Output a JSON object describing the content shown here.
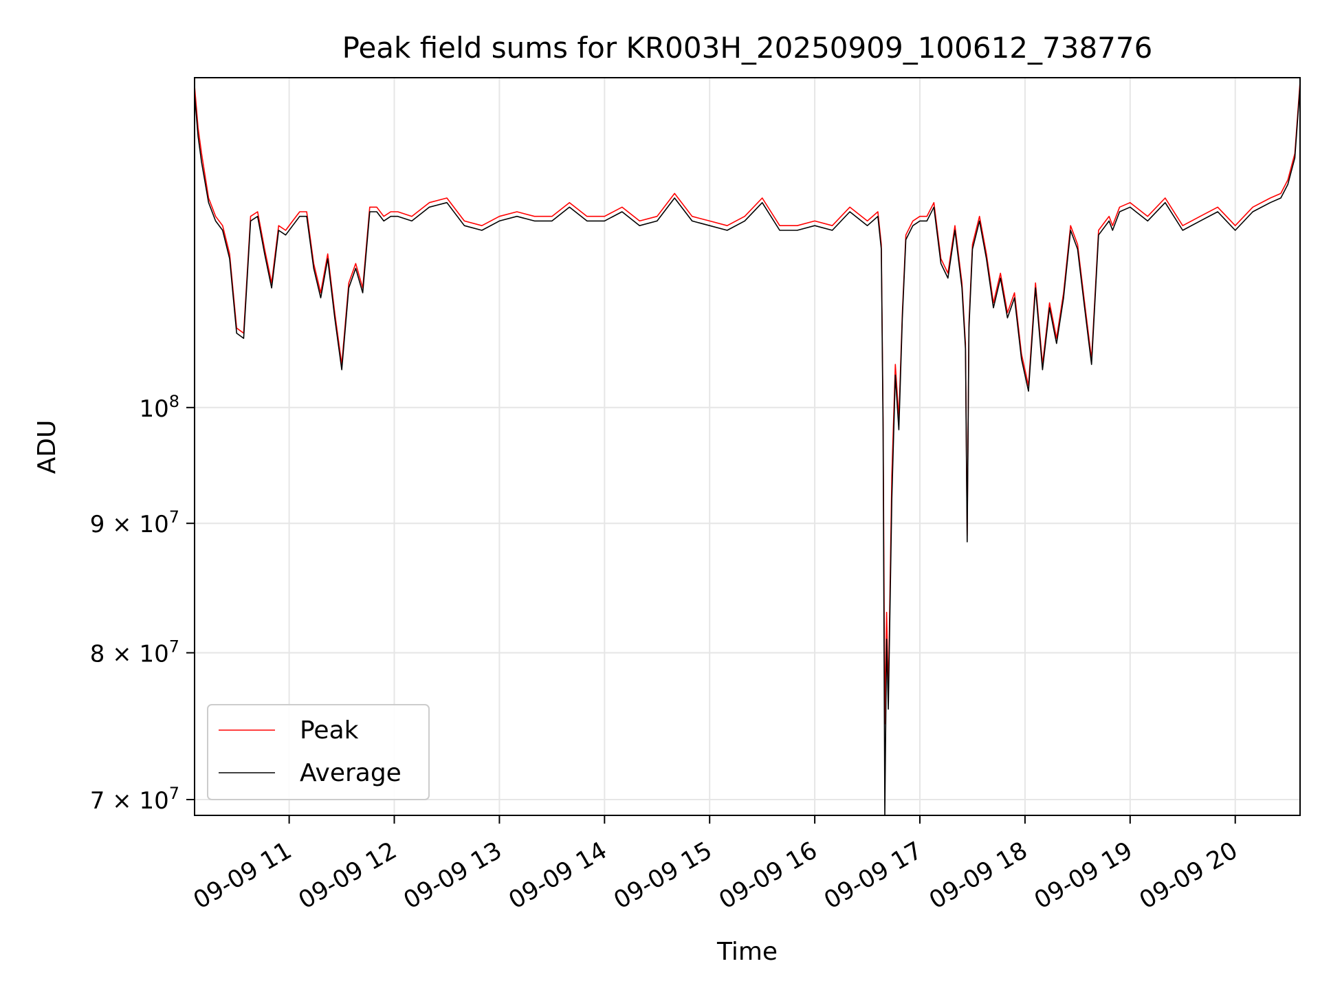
{
  "chart_data": {
    "type": "line",
    "title": "Peak field sums for KR003H_20250909_100612_738776",
    "xlabel": "Time",
    "ylabel": "ADU",
    "yscale": "log",
    "grid": true,
    "legend_position": "lower-left",
    "xlim": [
      "2025-09-09 10:06",
      "2025-09-09 20:37"
    ],
    "ylim": [
      69000000,
      135000000
    ],
    "x_ticks": [
      {
        "label": "09-09 11",
        "time": "2025-09-09 11:00"
      },
      {
        "label": "09-09 12",
        "time": "2025-09-09 12:00"
      },
      {
        "label": "09-09 13",
        "time": "2025-09-09 13:00"
      },
      {
        "label": "09-09 14",
        "time": "2025-09-09 14:00"
      },
      {
        "label": "09-09 15",
        "time": "2025-09-09 15:00"
      },
      {
        "label": "09-09 16",
        "time": "2025-09-09 16:00"
      },
      {
        "label": "09-09 17",
        "time": "2025-09-09 17:00"
      },
      {
        "label": "09-09 18",
        "time": "2025-09-09 18:00"
      },
      {
        "label": "09-09 19",
        "time": "2025-09-09 19:00"
      },
      {
        "label": "09-09 20",
        "time": "2025-09-09 20:00"
      }
    ],
    "y_ticks": [
      {
        "value": 70000000,
        "base": "7",
        "mult": "×",
        "ten": "10",
        "exp": "7"
      },
      {
        "value": 80000000,
        "base": "8",
        "mult": "×",
        "ten": "10",
        "exp": "7"
      },
      {
        "value": 90000000,
        "base": "9",
        "mult": "×",
        "ten": "10",
        "exp": "7"
      },
      {
        "value": 100000000,
        "base": "",
        "mult": "",
        "ten": "10",
        "exp": "8"
      }
    ],
    "series": [
      {
        "name": "Peak",
        "color": "#ff0000",
        "x": [
          "10:06",
          "10:08",
          "10:10",
          "10:14",
          "10:18",
          "10:22",
          "10:26",
          "10:30",
          "10:34",
          "10:38",
          "10:42",
          "10:46",
          "10:50",
          "10:54",
          "10:58",
          "11:02",
          "11:06",
          "11:10",
          "11:14",
          "11:18",
          "11:22",
          "11:26",
          "11:30",
          "11:34",
          "11:38",
          "11:42",
          "11:46",
          "11:50",
          "11:54",
          "11:58",
          "12:02",
          "12:10",
          "12:20",
          "12:30",
          "12:40",
          "12:50",
          "13:00",
          "13:10",
          "13:20",
          "13:30",
          "13:40",
          "13:50",
          "14:00",
          "14:10",
          "14:20",
          "14:30",
          "14:40",
          "14:50",
          "15:00",
          "15:10",
          "15:20",
          "15:30",
          "15:40",
          "15:50",
          "16:00",
          "16:10",
          "16:20",
          "16:30",
          "16:36",
          "16:38",
          "16:39",
          "16:40",
          "16:41",
          "16:42",
          "16:44",
          "16:46",
          "16:48",
          "16:50",
          "16:52",
          "16:56",
          "17:00",
          "17:04",
          "17:08",
          "17:12",
          "17:16",
          "17:20",
          "17:24",
          "17:26",
          "17:27",
          "17:28",
          "17:30",
          "17:34",
          "17:38",
          "17:42",
          "17:46",
          "17:50",
          "17:54",
          "17:58",
          "18:02",
          "18:06",
          "18:10",
          "18:14",
          "18:18",
          "18:22",
          "18:26",
          "18:30",
          "18:34",
          "18:38",
          "18:42",
          "18:46",
          "18:48",
          "18:50",
          "18:54",
          "19:00",
          "19:10",
          "19:20",
          "19:30",
          "19:40",
          "19:50",
          "20:00",
          "20:10",
          "20:20",
          "20:26",
          "20:30",
          "20:34",
          "20:37"
        ],
        "values": [
          134000000,
          129000000,
          126000000,
          121000000,
          119000000,
          118000000,
          115000000,
          107500000,
          107000000,
          119000000,
          119500000,
          115500000,
          112000000,
          118000000,
          117500000,
          118500000,
          119500000,
          119500000,
          114000000,
          111000000,
          115000000,
          109000000,
          104000000,
          112000000,
          114000000,
          111500000,
          120000000,
          120000000,
          119000000,
          119500000,
          119500000,
          119000000,
          120500000,
          121000000,
          118500000,
          118000000,
          119000000,
          119500000,
          119000000,
          119000000,
          120500000,
          119000000,
          119000000,
          120000000,
          118500000,
          119000000,
          121500000,
          119000000,
          118500000,
          118000000,
          119000000,
          121000000,
          118000000,
          118000000,
          118500000,
          118000000,
          120000000,
          118500000,
          119500000,
          116000000,
          99000000,
          75000000,
          83000000,
          77000000,
          94000000,
          104000000,
          99000000,
          109000000,
          117000000,
          118500000,
          119000000,
          119000000,
          120500000,
          114500000,
          113000000,
          118000000,
          112000000,
          106000000,
          89000000,
          108000000,
          116000000,
          119000000,
          115000000,
          110000000,
          113000000,
          109000000,
          111000000,
          105000000,
          102000000,
          112000000,
          104000000,
          110000000,
          106500000,
          111000000,
          118000000,
          116000000,
          110000000,
          104500000,
          117500000,
          118500000,
          119000000,
          118000000,
          120000000,
          120500000,
          119000000,
          121000000,
          118000000,
          119000000,
          120000000,
          118000000,
          120000000,
          121000000,
          121500000,
          123000000,
          126000000,
          134500000
        ]
      },
      {
        "name": "Average",
        "color": "#000000",
        "x": [
          "10:06",
          "10:08",
          "10:10",
          "10:14",
          "10:18",
          "10:22",
          "10:26",
          "10:30",
          "10:34",
          "10:38",
          "10:42",
          "10:46",
          "10:50",
          "10:54",
          "10:58",
          "11:02",
          "11:06",
          "11:10",
          "11:14",
          "11:18",
          "11:22",
          "11:26",
          "11:30",
          "11:34",
          "11:38",
          "11:42",
          "11:46",
          "11:50",
          "11:54",
          "11:58",
          "12:02",
          "12:10",
          "12:20",
          "12:30",
          "12:40",
          "12:50",
          "13:00",
          "13:10",
          "13:20",
          "13:30",
          "13:40",
          "13:50",
          "14:00",
          "14:10",
          "14:20",
          "14:30",
          "14:40",
          "14:50",
          "15:00",
          "15:10",
          "15:20",
          "15:30",
          "15:40",
          "15:50",
          "16:00",
          "16:10",
          "16:20",
          "16:30",
          "16:36",
          "16:38",
          "16:39",
          "16:40",
          "16:41",
          "16:42",
          "16:44",
          "16:46",
          "16:48",
          "16:50",
          "16:52",
          "16:56",
          "17:00",
          "17:04",
          "17:08",
          "17:12",
          "17:16",
          "17:20",
          "17:24",
          "17:26",
          "17:27",
          "17:28",
          "17:30",
          "17:34",
          "17:38",
          "17:42",
          "17:46",
          "17:50",
          "17:54",
          "17:58",
          "18:02",
          "18:06",
          "18:10",
          "18:14",
          "18:18",
          "18:22",
          "18:26",
          "18:30",
          "18:34",
          "18:38",
          "18:42",
          "18:46",
          "18:48",
          "18:50",
          "18:54",
          "19:00",
          "19:10",
          "19:20",
          "19:30",
          "19:40",
          "19:50",
          "20:00",
          "20:10",
          "20:20",
          "20:26",
          "20:30",
          "20:34",
          "20:37"
        ],
        "values": [
          133000000,
          128000000,
          125000000,
          120500000,
          118500000,
          117500000,
          114500000,
          107000000,
          106500000,
          118500000,
          119000000,
          115000000,
          111500000,
          117500000,
          117000000,
          118000000,
          119000000,
          119000000,
          113500000,
          110500000,
          114500000,
          108500000,
          103500000,
          111500000,
          113500000,
          111000000,
          119500000,
          119500000,
          118500000,
          119000000,
          119000000,
          118500000,
          120000000,
          120500000,
          118000000,
          117500000,
          118500000,
          119000000,
          118500000,
          118500000,
          120000000,
          118500000,
          118500000,
          119500000,
          118000000,
          118500000,
          121000000,
          118500000,
          118000000,
          117500000,
          118500000,
          120500000,
          117500000,
          117500000,
          118000000,
          117500000,
          119500000,
          118000000,
          119000000,
          115500000,
          98000000,
          69000000,
          81000000,
          76000000,
          92000000,
          103000000,
          98000000,
          108500000,
          116500000,
          118000000,
          118500000,
          118500000,
          120000000,
          114000000,
          112500000,
          117500000,
          111500000,
          105500000,
          88500000,
          107500000,
          115500000,
          118500000,
          114500000,
          109500000,
          112500000,
          108500000,
          110500000,
          104500000,
          101500000,
          111500000,
          103500000,
          109500000,
          106000000,
          110500000,
          117500000,
          115500000,
          109500000,
          104000000,
          117000000,
          118000000,
          118500000,
          117500000,
          119500000,
          120000000,
          118500000,
          120500000,
          117500000,
          118500000,
          119500000,
          117500000,
          119500000,
          120500000,
          121000000,
          122500000,
          125500000,
          134000000
        ]
      }
    ]
  }
}
